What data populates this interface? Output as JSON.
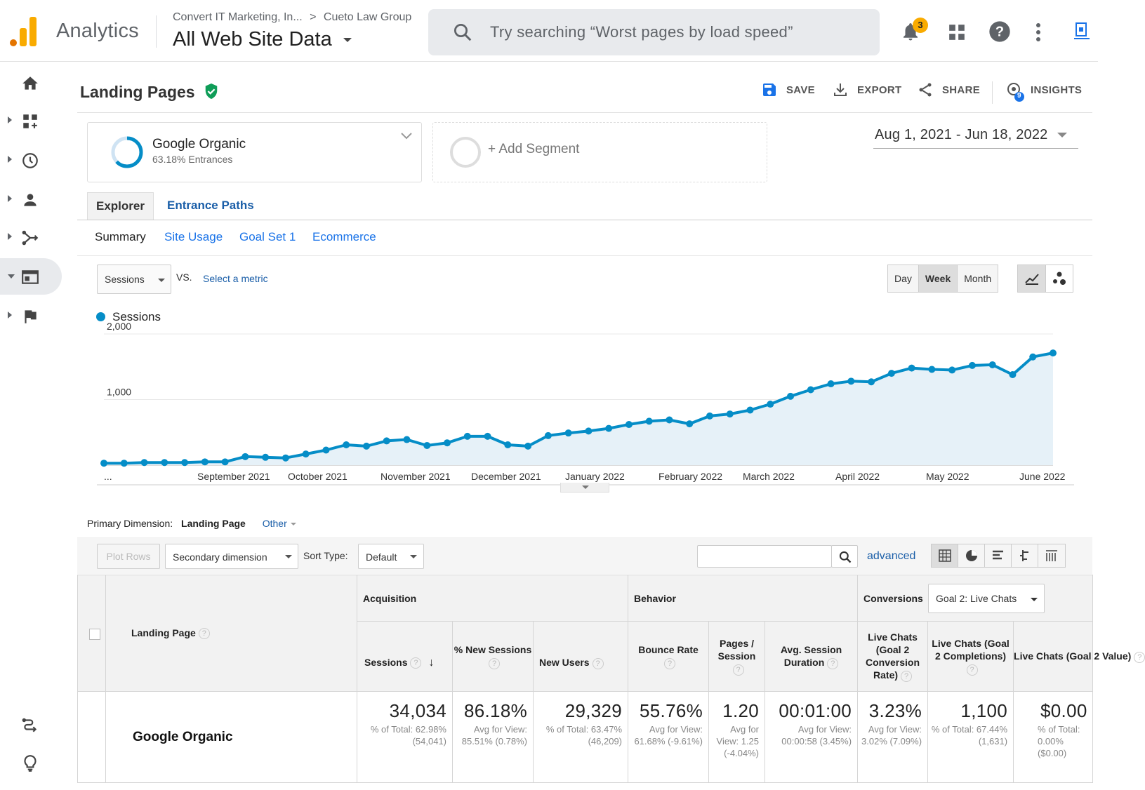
{
  "app": {
    "name": "Analytics",
    "breadcrumb_account": "Convert IT Marketing, In...",
    "breadcrumb_sep": ">",
    "breadcrumb_property": "Cueto Law Group",
    "view": "All Web Site Data",
    "search_placeholder": "Try searching “Worst pages by load speed”",
    "notification_count": "3",
    "brand_color": "#F9AB00"
  },
  "page": {
    "title": "Landing Pages",
    "actions": {
      "save": "SAVE",
      "export": "EXPORT",
      "share": "SHARE",
      "insights": "INSIGHTS",
      "insights_count": "9"
    }
  },
  "segments": {
    "active_name": "Google Organic",
    "active_sub": "63.18% Entrances",
    "add": "+ Add Segment"
  },
  "date_range": "Aug 1, 2021 - Jun 18, 2022",
  "tabs": {
    "explorer": "Explorer",
    "entrance_paths": "Entrance Paths"
  },
  "subtabs": [
    "Summary",
    "Site Usage",
    "Goal Set 1",
    "Ecommerce"
  ],
  "controls": {
    "metric": "Sessions",
    "vs": "VS.",
    "select_metric": "Select a metric",
    "periods": [
      "Day",
      "Week",
      "Month"
    ],
    "active_period": "Week"
  },
  "chart_data": {
    "type": "area",
    "legend": [
      "Sessions"
    ],
    "series": [
      {
        "name": "Sessions",
        "values": [
          30,
          30,
          40,
          40,
          40,
          50,
          50,
          130,
          120,
          110,
          170,
          230,
          310,
          290,
          370,
          390,
          300,
          340,
          440,
          440,
          310,
          290,
          450,
          490,
          520,
          560,
          620,
          670,
          690,
          630,
          750,
          780,
          840,
          930,
          1050,
          1150,
          1240,
          1280,
          1270,
          1400,
          1480,
          1460,
          1450,
          1520,
          1530,
          1380,
          1650,
          1710
        ],
        "color": "#058DC7"
      }
    ],
    "x_tick_labels": [
      "...",
      "September 2021",
      "October 2021",
      "November 2021",
      "December 2021",
      "January 2022",
      "February 2022",
      "March 2022",
      "April 2022",
      "May 2022",
      "June 2022"
    ],
    "y_ticks": [
      1000,
      2000
    ],
    "y_tick_labels": [
      "1,000",
      "2,000"
    ],
    "ylim": [
      0,
      2000
    ],
    "grid": true
  },
  "dimension": {
    "label": "Primary Dimension:",
    "value": "Landing Page",
    "other": "Other"
  },
  "toolbar": {
    "plot_rows": "Plot Rows",
    "secondary": "Secondary dimension",
    "sort_type_label": "Sort Type:",
    "sort_type": "Default",
    "advanced": "advanced"
  },
  "table": {
    "groups": {
      "acquisition": "Acquisition",
      "behavior": "Behavior",
      "conversions": "Conversions",
      "goal_select": "Goal 2: Live Chats"
    },
    "dim_header": "Landing Page",
    "columns": [
      "Sessions",
      "% New Sessions",
      "New Users",
      "Bounce Rate",
      "Pages / Session",
      "Avg. Session Duration",
      "Live Chats (Goal 2 Conversion Rate)",
      "Live Chats (Goal 2 Completions)",
      "Live Chats (Goal 2 Value)"
    ],
    "row_label": "Google Organic",
    "values": [
      "34,034",
      "86.18%",
      "29,329",
      "55.76%",
      "1.20",
      "00:01:00",
      "3.23%",
      "1,100",
      "$0.00"
    ],
    "subtexts": [
      "% of Total: 62.98% (54,041)",
      "Avg for View: 85.51% (0.78%)",
      "% of Total: 63.47% (46,209)",
      "Avg for View: 61.68% (-9.61%)",
      "Avg for View: 1.25 (-4.04%)",
      "Avg for View: 00:00:58 (3.45%)",
      "Avg for View: 3.02% (7.09%)",
      "% of Total: 67.44% (1,631)",
      "% of Total: 0.00% ($0.00)"
    ]
  }
}
